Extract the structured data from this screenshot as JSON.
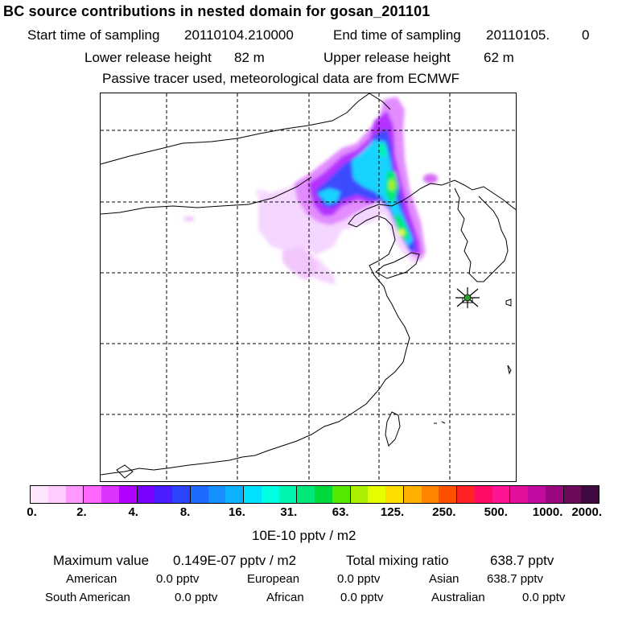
{
  "title": "BC  source contributions in nested domain for gosan_201101",
  "header": {
    "start_label": "Start time of sampling",
    "start_value": "20110104.210000",
    "end_label": "End time of sampling",
    "end_value": "20110105.",
    "end_suffix": "0",
    "lower_label": "Lower release height",
    "lower_value": "82 m",
    "upper_label": "Upper release height",
    "upper_value": "62 m",
    "note": "Passive tracer used, meteorological data are from ECMWF"
  },
  "colors": {
    "map_outline": "#000000",
    "grid": "#000000",
    "marker": "#1f7a1f"
  },
  "colorbar": {
    "colors": [
      "#ffe6ff",
      "#ffccff",
      "#ff99ff",
      "#ff66ff",
      "#dd33ff",
      "#b000ff",
      "#7a00ff",
      "#4b1cff",
      "#2b45ff",
      "#1f6bff",
      "#168fff",
      "#0cb2ff",
      "#00e0ff",
      "#00ffe0",
      "#00f5b0",
      "#00e87a",
      "#00d93c",
      "#55e800",
      "#a8f000",
      "#e6ff00",
      "#ffdd00",
      "#ffb000",
      "#ff8400",
      "#ff5000",
      "#ff2424",
      "#ff0a66",
      "#ff1493",
      "#e20f9d",
      "#c10aa0",
      "#99067f",
      "#6d0a5c",
      "#400a40"
    ],
    "ticks": [
      "0.",
      "2.",
      "4.",
      "8.",
      "16.",
      "31.",
      "63.",
      "125.",
      "250.",
      "500.",
      "1000.",
      "2000."
    ],
    "unit": "10E-10 pptv / m2"
  },
  "summary": {
    "max_label": "Maximum value",
    "max_value": "0.149E-07 pptv / m2",
    "total_label": "Total mixing ratio",
    "total_value": "638.7 pptv",
    "regions": [
      {
        "name": "American",
        "value": "0.0 pptv"
      },
      {
        "name": "European",
        "value": "0.0 pptv"
      },
      {
        "name": "Asian",
        "value": "638.7 pptv"
      },
      {
        "name": "South American",
        "value": "0.0 pptv"
      },
      {
        "name": "African",
        "value": "0.0 pptv"
      },
      {
        "name": "Australian",
        "value": "0.0 pptv"
      }
    ]
  }
}
